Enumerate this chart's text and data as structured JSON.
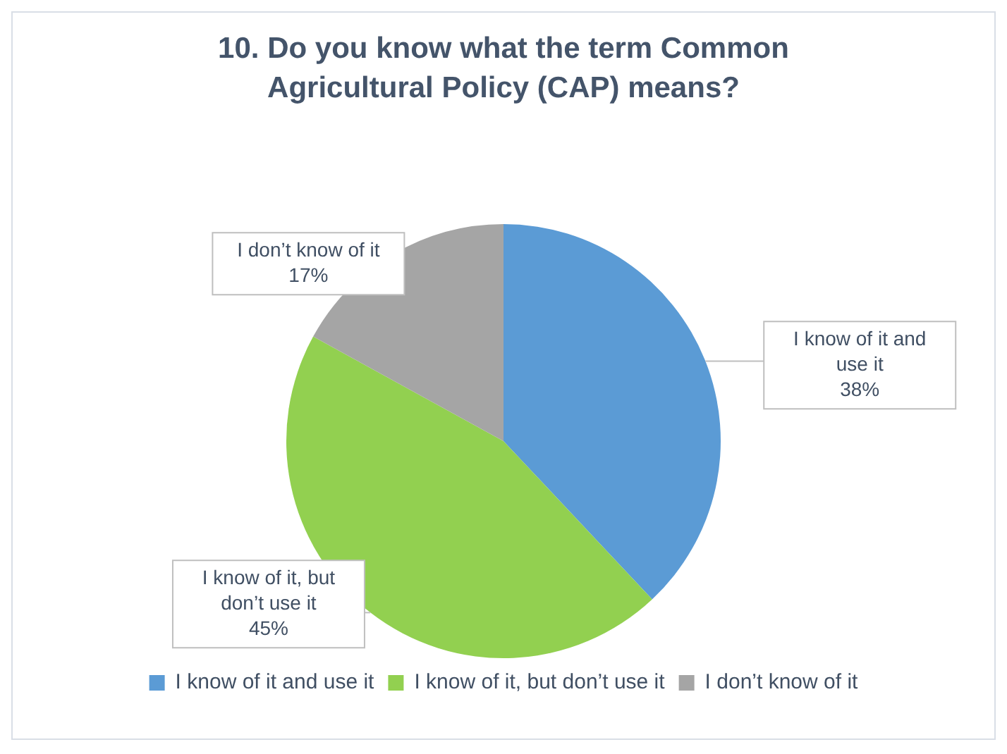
{
  "chart_data": {
    "type": "pie",
    "title": "10. Do you know what the term Common Agricultural Policy (CAP) means?",
    "categories": [
      "I know of it and use it",
      "I know of it, but don’t use it",
      "I don’t know of it"
    ],
    "values": [
      38,
      45,
      17
    ],
    "value_labels": [
      "38%",
      "45%",
      "17%"
    ],
    "colors": [
      "#5b9bd5",
      "#92d050",
      "#a5a5a5"
    ],
    "legend": "bottom"
  }
}
